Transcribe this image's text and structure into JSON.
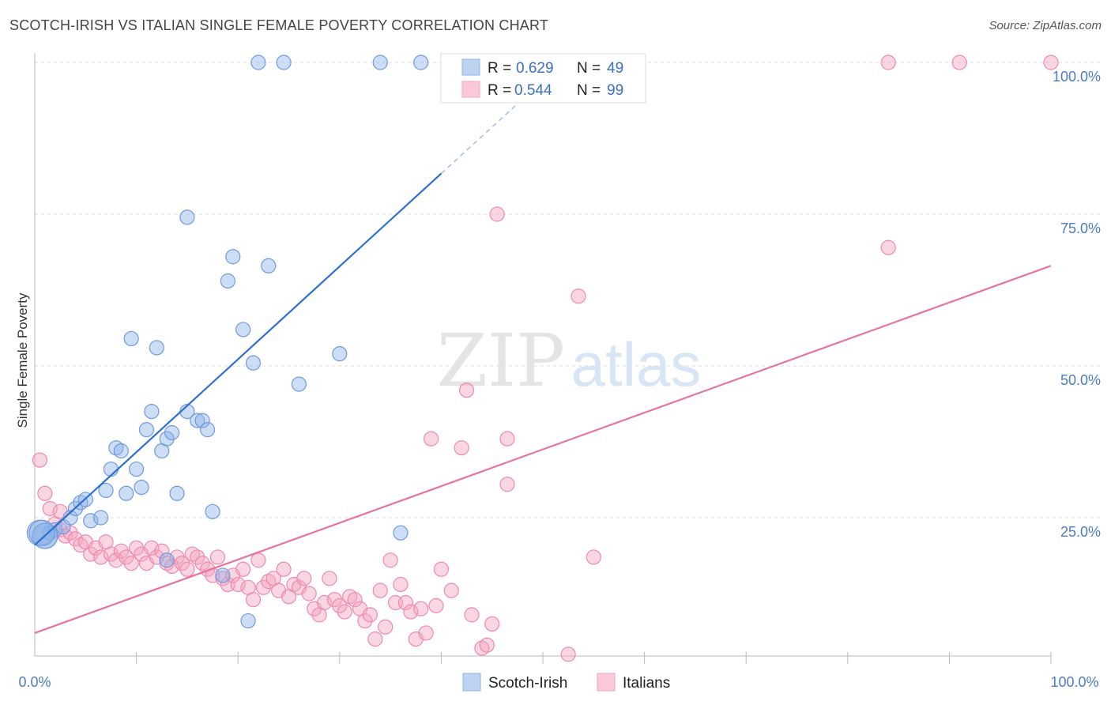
{
  "header": {
    "title": "SCOTCH-IRISH VS ITALIAN SINGLE FEMALE POVERTY CORRELATION CHART",
    "source": "Source: ZipAtlas.com"
  },
  "watermark": {
    "zip": "ZIP",
    "atlas": "atlas"
  },
  "colors": {
    "blue": "#8fb4e8",
    "blue_stroke": "#6f9bdc",
    "blue_line": "#2c6fd1",
    "pink": "#f4a3be",
    "pink_stroke": "#ee8aad",
    "pink_line": "#e8739b",
    "grid": "#dddddd",
    "tick_text": "#4a7cc7"
  },
  "chart_data": {
    "type": "scatter",
    "title": "SCOTCH-IRISH VS ITALIAN SINGLE FEMALE POVERTY CORRELATION CHART",
    "xlabel": "",
    "ylabel": "Single Female Poverty",
    "xlim": [
      0,
      100
    ],
    "ylim": [
      0,
      100
    ],
    "x_tick_labels": [
      "0.0%",
      "100.0%"
    ],
    "y_ticks": [
      25,
      50,
      75,
      100
    ],
    "y_tick_labels": [
      "25.0%",
      "50.0%",
      "75.0%",
      "100.0%"
    ],
    "grid": true,
    "legend_top": {
      "position": "top-center",
      "entries": [
        {
          "r_label": "R =",
          "r_value": "0.629",
          "n_label": "N =",
          "n_value": "49"
        },
        {
          "r_label": "R =",
          "r_value": "0.544",
          "n_label": "N =",
          "n_value": "99"
        }
      ]
    },
    "legend_bottom": [
      "Scotch-Irish",
      "Italians"
    ],
    "series": [
      {
        "name": "Scotch-Irish",
        "color": "#8fb4e8",
        "trend": {
          "x": [
            0,
            40
          ],
          "y": [
            20.5,
            81.7
          ]
        },
        "trend_dashed": {
          "x": [
            40,
            50
          ],
          "y": [
            81.7,
            97
          ]
        },
        "points": [
          [
            0.5,
            22.5
          ],
          [
            1.0,
            22.0
          ],
          [
            1.5,
            22.5
          ],
          [
            2.0,
            23.0
          ],
          [
            2.8,
            23.5
          ],
          [
            3.5,
            25.0
          ],
          [
            4.0,
            26.5
          ],
          [
            4.5,
            27.5
          ],
          [
            5.0,
            28.0
          ],
          [
            5.5,
            24.5
          ],
          [
            6.5,
            25.0
          ],
          [
            7.0,
            29.5
          ],
          [
            7.5,
            33.0
          ],
          [
            8.0,
            36.5
          ],
          [
            8.5,
            36.0
          ],
          [
            9.0,
            29.0
          ],
          [
            9.5,
            54.5
          ],
          [
            10.0,
            33.0
          ],
          [
            10.5,
            30.0
          ],
          [
            11.0,
            39.5
          ],
          [
            11.5,
            42.5
          ],
          [
            12.0,
            53.0
          ],
          [
            12.5,
            36.0
          ],
          [
            13.0,
            38.0
          ],
          [
            13.5,
            39.0
          ],
          [
            14.0,
            29.0
          ],
          [
            15.0,
            74.5
          ],
          [
            15.0,
            42.5
          ],
          [
            16.0,
            41.0
          ],
          [
            16.5,
            41.0
          ],
          [
            17.0,
            39.5
          ],
          [
            17.5,
            26.0
          ],
          [
            18.5,
            15.5
          ],
          [
            19.0,
            64.0
          ],
          [
            19.5,
            68.0
          ],
          [
            20.5,
            56.0
          ],
          [
            21.0,
            8.0
          ],
          [
            21.5,
            50.5
          ],
          [
            22.0,
            100.0
          ],
          [
            23.0,
            66.5
          ],
          [
            24.5,
            100.0
          ],
          [
            26.0,
            47.0
          ],
          [
            30.0,
            52.0
          ],
          [
            34.0,
            100.0
          ],
          [
            36.0,
            22.5
          ],
          [
            38.0,
            100.0
          ],
          [
            13.0,
            18.0
          ],
          [
            1.0,
            22.0
          ],
          [
            0.7,
            22.5
          ]
        ]
      },
      {
        "name": "Italians",
        "color": "#f4a3be",
        "trend": {
          "x": [
            0,
            100
          ],
          "y": [
            6.0,
            66.5
          ]
        },
        "points": [
          [
            0.5,
            34.5
          ],
          [
            1.0,
            29.0
          ],
          [
            1.5,
            26.5
          ],
          [
            2.0,
            24.0
          ],
          [
            2.5,
            23.0
          ],
          [
            3.0,
            22.0
          ],
          [
            3.5,
            22.5
          ],
          [
            4.0,
            21.5
          ],
          [
            4.5,
            20.5
          ],
          [
            5.0,
            21.0
          ],
          [
            5.5,
            19.0
          ],
          [
            6.0,
            20.0
          ],
          [
            6.5,
            18.5
          ],
          [
            7.0,
            21.0
          ],
          [
            7.5,
            19.0
          ],
          [
            8.0,
            18.0
          ],
          [
            8.5,
            19.5
          ],
          [
            9.0,
            18.5
          ],
          [
            9.5,
            17.5
          ],
          [
            10.0,
            20.0
          ],
          [
            10.5,
            19.0
          ],
          [
            11.0,
            17.5
          ],
          [
            11.5,
            20.0
          ],
          [
            12.0,
            18.5
          ],
          [
            12.5,
            19.5
          ],
          [
            13.0,
            17.5
          ],
          [
            13.5,
            17.0
          ],
          [
            14.0,
            18.5
          ],
          [
            14.5,
            17.5
          ],
          [
            15.0,
            16.5
          ],
          [
            15.5,
            19.0
          ],
          [
            16.0,
            18.5
          ],
          [
            16.5,
            17.5
          ],
          [
            17.0,
            16.5
          ],
          [
            17.5,
            15.5
          ],
          [
            18.0,
            18.5
          ],
          [
            18.5,
            15.0
          ],
          [
            19.0,
            14.0
          ],
          [
            19.5,
            15.5
          ],
          [
            20.0,
            14.0
          ],
          [
            20.5,
            16.5
          ],
          [
            21.0,
            13.5
          ],
          [
            21.5,
            11.5
          ],
          [
            22.0,
            18.0
          ],
          [
            22.5,
            13.5
          ],
          [
            23.0,
            14.5
          ],
          [
            23.5,
            15.0
          ],
          [
            24.0,
            13.0
          ],
          [
            24.5,
            16.5
          ],
          [
            25.0,
            12.0
          ],
          [
            25.5,
            14.0
          ],
          [
            26.0,
            13.5
          ],
          [
            26.5,
            15.0
          ],
          [
            27.0,
            12.5
          ],
          [
            27.5,
            10.0
          ],
          [
            28.0,
            9.0
          ],
          [
            28.5,
            11.0
          ],
          [
            29.0,
            15.0
          ],
          [
            29.5,
            11.5
          ],
          [
            30.0,
            10.5
          ],
          [
            30.5,
            9.5
          ],
          [
            31.0,
            12.0
          ],
          [
            31.5,
            11.5
          ],
          [
            32.0,
            10.0
          ],
          [
            32.5,
            8.0
          ],
          [
            33.0,
            9.0
          ],
          [
            33.5,
            5.0
          ],
          [
            34.0,
            13.0
          ],
          [
            34.5,
            7.0
          ],
          [
            35.0,
            18.0
          ],
          [
            35.5,
            11.0
          ],
          [
            36.0,
            14.0
          ],
          [
            36.5,
            11.0
          ],
          [
            37.0,
            9.5
          ],
          [
            37.5,
            5.0
          ],
          [
            38.0,
            10.0
          ],
          [
            38.5,
            6.0
          ],
          [
            39.0,
            38.0
          ],
          [
            39.5,
            10.5
          ],
          [
            40.0,
            16.5
          ],
          [
            41.0,
            13.0
          ],
          [
            42.0,
            36.5
          ],
          [
            42.5,
            46.0
          ],
          [
            43.0,
            9.0
          ],
          [
            44.0,
            3.5
          ],
          [
            44.5,
            4.0
          ],
          [
            45.0,
            7.5
          ],
          [
            45.5,
            75.0
          ],
          [
            46.5,
            38.0
          ],
          [
            46.5,
            30.5
          ],
          [
            50.0,
            100.0
          ],
          [
            52.5,
            2.5
          ],
          [
            53.5,
            61.5
          ],
          [
            55.0,
            18.5
          ],
          [
            84.0,
            69.5
          ],
          [
            84.0,
            100.0
          ],
          [
            91.0,
            100.0
          ],
          [
            100.0,
            100.0
          ],
          [
            2.5,
            26.0
          ]
        ]
      }
    ]
  }
}
